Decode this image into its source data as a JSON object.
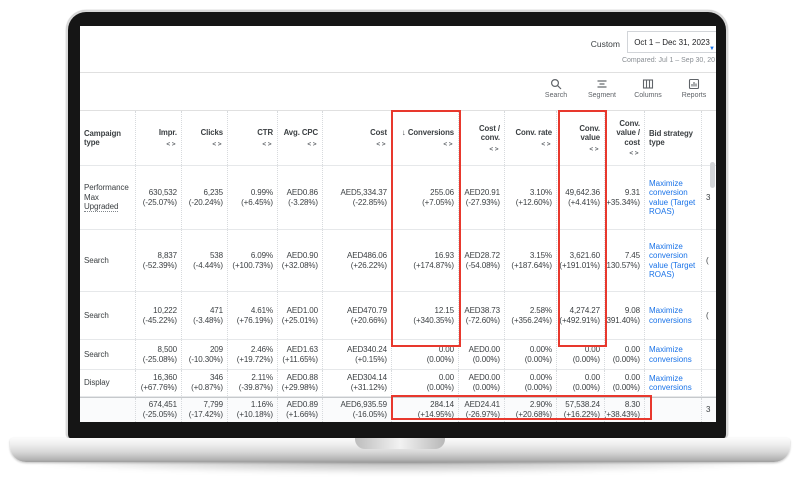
{
  "colors": {
    "link_blue": "#1a73e8",
    "annotation_red": "#e8382d",
    "accent_blue": "#4285f4"
  },
  "date_selector": {
    "preset": "Custom",
    "range": "Oct 1 – Dec 31, 2023",
    "compared": "Compared: Jul 1 – Sep 30, 20"
  },
  "toolbar": {
    "items": [
      {
        "icon": "search-icon",
        "label": "Search"
      },
      {
        "icon": "segment-icon",
        "label": "Segment"
      },
      {
        "icon": "columns-icon",
        "label": "Columns"
      },
      {
        "icon": "reports-icon",
        "label": "Reports"
      }
    ]
  },
  "table": {
    "columns": [
      {
        "key": "campaign_type",
        "label": "Campaign type",
        "compare": false,
        "sorted": false
      },
      {
        "key": "impr",
        "label": "Impr.",
        "compare": true,
        "sorted": false
      },
      {
        "key": "clicks",
        "label": "Clicks",
        "compare": true,
        "sorted": false
      },
      {
        "key": "ctr",
        "label": "CTR",
        "compare": true,
        "sorted": false
      },
      {
        "key": "avg_cpc",
        "label": "Avg. CPC",
        "compare": true,
        "sorted": false
      },
      {
        "key": "cost",
        "label": "Cost",
        "compare": true,
        "sorted": false
      },
      {
        "key": "conversions",
        "label": "Conversions",
        "compare": true,
        "sorted": true
      },
      {
        "key": "cost_conv",
        "label": "Cost / conv.",
        "compare": true,
        "sorted": false
      },
      {
        "key": "conv_rate",
        "label": "Conv. rate",
        "compare": true,
        "sorted": false
      },
      {
        "key": "conv_value",
        "label": "Conv. value",
        "compare": true,
        "sorted": false
      },
      {
        "key": "conv_value_cost",
        "label": "Conv. value / cost",
        "compare": true,
        "sorted": false
      },
      {
        "key": "bid_strategy",
        "label": "Bid strategy type",
        "compare": false,
        "sorted": false
      },
      {
        "key": "clipped",
        "label": "",
        "compare": false,
        "sorted": false
      }
    ],
    "rows": [
      {
        "campaign_type": "Performance Max Upgraded",
        "campaign_underlined": "Upgraded",
        "impr": [
          "630,532",
          "(-25.07%)"
        ],
        "clicks": [
          "6,235",
          "(-20.24%)"
        ],
        "ctr": [
          "0.99%",
          "(+6.45%)"
        ],
        "avg_cpc": [
          "AED0.86",
          "(-3.28%)"
        ],
        "cost": [
          "AED5,334.37",
          "(-22.85%)"
        ],
        "conversions": [
          "255.06",
          "(+7.05%)"
        ],
        "cost_conv": [
          "AED20.91",
          "(-27.93%)"
        ],
        "conv_rate": [
          "3.10%",
          "(+12.60%)"
        ],
        "conv_value": [
          "49,642.36",
          "(+4.41%)"
        ],
        "conv_value_cost": [
          "9.31",
          "(+35.34%)"
        ],
        "bid_strategy": "Maximize conversion value (Target ROAS)",
        "clipped": "3"
      },
      {
        "campaign_type": "Search",
        "campaign_underlined": "",
        "impr": [
          "8,837",
          "(-52.39%)"
        ],
        "clicks": [
          "538",
          "(-4.44%)"
        ],
        "ctr": [
          "6.09%",
          "(+100.73%)"
        ],
        "avg_cpc": [
          "AED0.90",
          "(+32.08%)"
        ],
        "cost": [
          "AED486.06",
          "(+26.22%)"
        ],
        "conversions": [
          "16.93",
          "(+174.87%)"
        ],
        "cost_conv": [
          "AED28.72",
          "(-54.08%)"
        ],
        "conv_rate": [
          "3.15%",
          "(+187.64%)"
        ],
        "conv_value": [
          "3,621.60",
          "(+191.01%)"
        ],
        "conv_value_cost": [
          "7.45",
          "(+130.57%)"
        ],
        "bid_strategy": "Maximize conversion value (Target ROAS)",
        "clipped": "("
      },
      {
        "campaign_type": "Search",
        "campaign_underlined": "",
        "impr": [
          "10,222",
          "(-45.22%)"
        ],
        "clicks": [
          "471",
          "(-3.48%)"
        ],
        "ctr": [
          "4.61%",
          "(+76.19%)"
        ],
        "avg_cpc": [
          "AED1.00",
          "(+25.01%)"
        ],
        "cost": [
          "AED470.79",
          "(+20.66%)"
        ],
        "conversions": [
          "12.15",
          "(+340.35%)"
        ],
        "cost_conv": [
          "AED38.73",
          "(-72.60%)"
        ],
        "conv_rate": [
          "2.58%",
          "(+356.24%)"
        ],
        "conv_value": [
          "4,274.27",
          "(+492.91%)"
        ],
        "conv_value_cost": [
          "9.08",
          "(+391.40%)"
        ],
        "bid_strategy": "Maximize conversions",
        "clipped": "("
      },
      {
        "campaign_type": "Search",
        "campaign_underlined": "",
        "impr": [
          "8,500",
          "(-25.08%)"
        ],
        "clicks": [
          "209",
          "(-10.30%)"
        ],
        "ctr": [
          "2.46%",
          "(+19.72%)"
        ],
        "avg_cpc": [
          "AED1.63",
          "(+11.65%)"
        ],
        "cost": [
          "AED340.24",
          "(+0.15%)"
        ],
        "conversions": [
          "0.00",
          "(0.00%)"
        ],
        "cost_conv": [
          "AED0.00",
          "(0.00%)"
        ],
        "conv_rate": [
          "0.00%",
          "(0.00%)"
        ],
        "conv_value": [
          "0.00",
          "(0.00%)"
        ],
        "conv_value_cost": [
          "0.00",
          "(0.00%)"
        ],
        "bid_strategy": "Maximize conversions",
        "clipped": ""
      },
      {
        "campaign_type": "Display",
        "campaign_underlined": "",
        "impr": [
          "16,360",
          "(+67.76%)"
        ],
        "clicks": [
          "346",
          "(+0.87%)"
        ],
        "ctr": [
          "2.11%",
          "(-39.87%)"
        ],
        "avg_cpc": [
          "AED0.88",
          "(+29.98%)"
        ],
        "cost": [
          "AED304.14",
          "(+31.12%)"
        ],
        "conversions": [
          "0.00",
          "(0.00%)"
        ],
        "cost_conv": [
          "AED0.00",
          "(0.00%)"
        ],
        "conv_rate": [
          "0.00%",
          "(0.00%)"
        ],
        "conv_value": [
          "0.00",
          "(0.00%)"
        ],
        "conv_value_cost": [
          "0.00",
          "(0.00%)"
        ],
        "bid_strategy": "Maximize conversions",
        "clipped": ""
      }
    ],
    "totals": {
      "campaign_type": "",
      "campaign_underlined": "",
      "impr": [
        "674,451",
        "(-25.05%)"
      ],
      "clicks": [
        "7,799",
        "(-17.42%)"
      ],
      "ctr": [
        "1.16%",
        "(+10.18%)"
      ],
      "avg_cpc": [
        "AED0.89",
        "(+1.66%)"
      ],
      "cost": [
        "AED6,935.59",
        "(-16.05%)"
      ],
      "conversions": [
        "284.14",
        "(+14.95%)"
      ],
      "cost_conv": [
        "AED24.41",
        "(-26.97%)"
      ],
      "conv_rate": [
        "2.90%",
        "(+20.68%)"
      ],
      "conv_value": [
        "57,538.24",
        "(+16.22%)"
      ],
      "conv_value_cost": [
        "8.30",
        "(+38.43%)"
      ],
      "bid_strategy": "",
      "clipped": "3"
    }
  }
}
